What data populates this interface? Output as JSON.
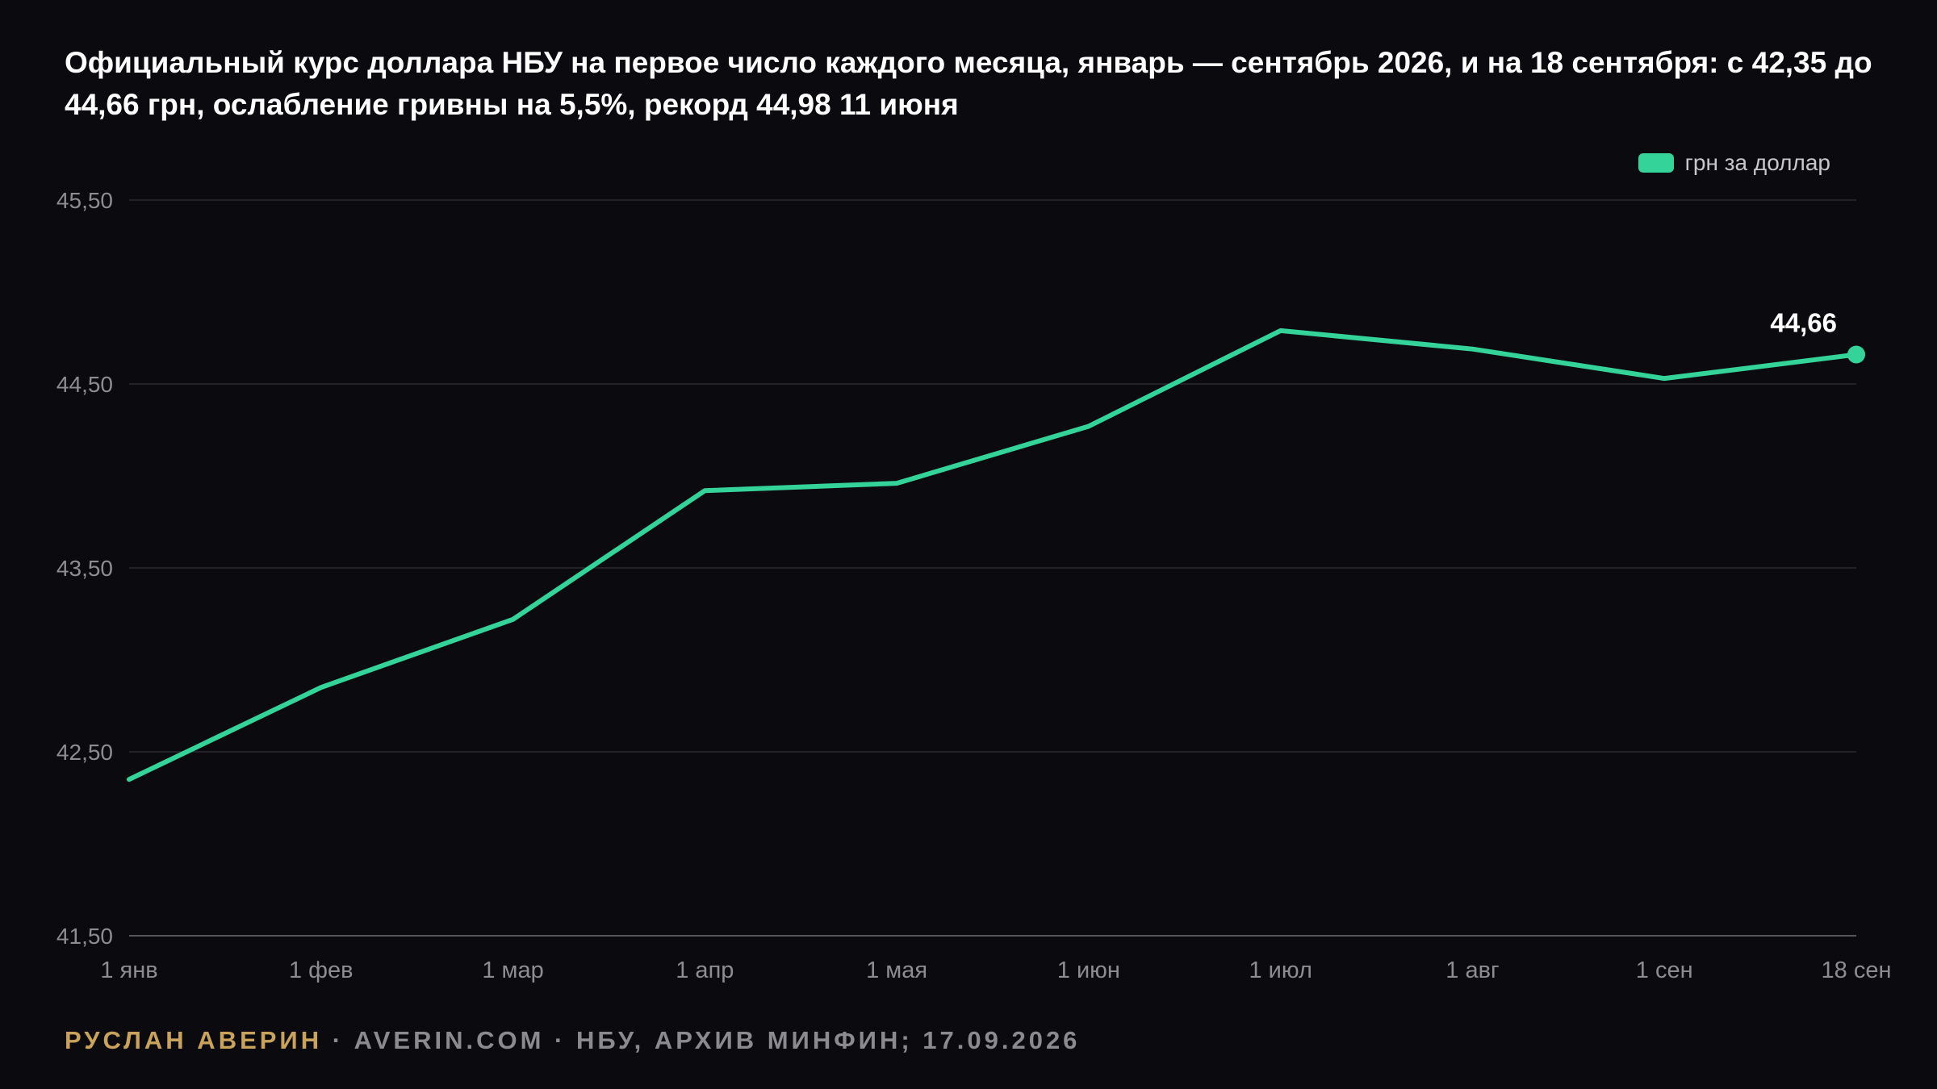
{
  "colors": {
    "background": "#0b0b0f",
    "line": "#34d399",
    "grid": "#2a2a31",
    "tick_text": "#8c8c92",
    "author": "#c9a35b",
    "footer_text": "#8a8a90"
  },
  "chart_data": {
    "type": "line",
    "title": "Официальный курс доллара НБУ на первое число каждого месяца, январь — сентябрь 2026, и на 18 сентября: с 42,35 до 44,66 грн, ослабление гривны на 5,5%, рекорд 44,98 11 июня",
    "xlabel": "",
    "ylabel": "",
    "categories": [
      "1 янв",
      "1 фев",
      "1 мар",
      "1 апр",
      "1 мая",
      "1 июн",
      "1 июл",
      "1 авг",
      "1 сен",
      "18 сен"
    ],
    "series": [
      {
        "name": "грн за доллар",
        "values": [
          42.35,
          42.85,
          43.22,
          43.92,
          43.96,
          44.27,
          44.79,
          44.69,
          44.53,
          44.66
        ]
      }
    ],
    "ylim": [
      41.5,
      45.5
    ],
    "yticks": [
      41.5,
      42.5,
      43.5,
      44.5,
      45.5
    ],
    "ytick_labels": [
      "41,50",
      "42,50",
      "43,50",
      "44,50",
      "45,50"
    ],
    "grid": true,
    "legend_position": "top-right",
    "end_label": "44,66"
  },
  "footer": {
    "author": "РУСЛАН АВЕРИН",
    "rest": " · AVERIN.COM · НБУ, АРХИВ МИНФИН; 17.09.2026"
  }
}
